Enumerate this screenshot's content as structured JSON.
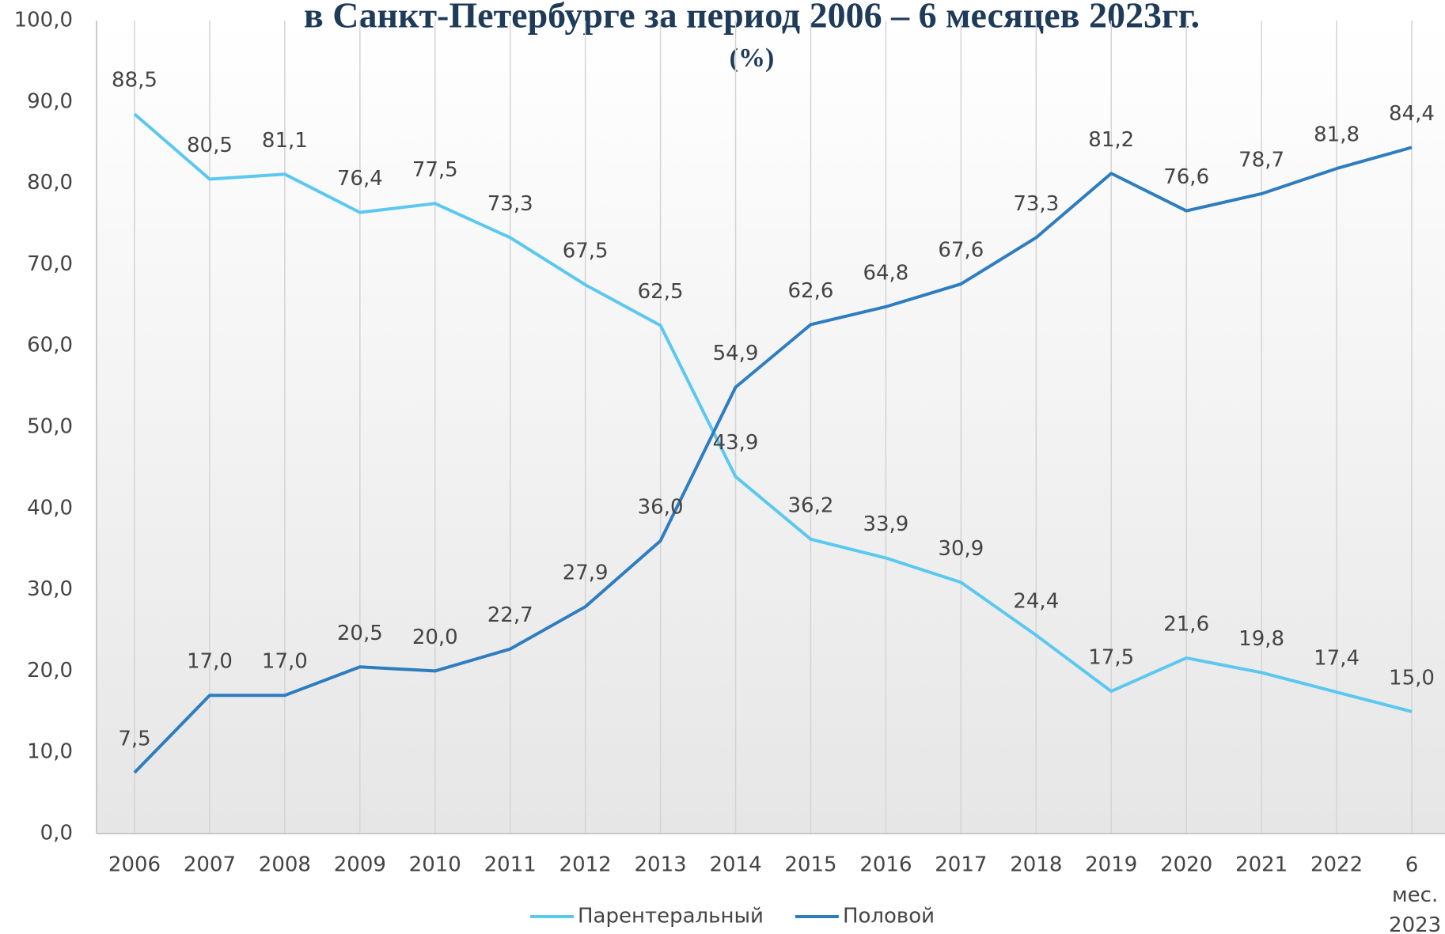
{
  "chart_data": {
    "type": "line",
    "title": "в Санкт-Петербурге за период 2006 – 6 месяцев 2023гг.",
    "subtitle": "(%)",
    "categories": [
      "2006",
      "2007",
      "2008",
      "2009",
      "2010",
      "2011",
      "2012",
      "2013",
      "2014",
      "2015",
      "2016",
      "2017",
      "2018",
      "2019",
      "2020",
      "2021",
      "2022",
      "6 мес. 2023"
    ],
    "series": [
      {
        "name": "Парентеральный",
        "color": "#5bc8ef",
        "values": [
          88.5,
          80.5,
          81.1,
          76.4,
          77.5,
          73.3,
          67.5,
          62.5,
          43.9,
          36.2,
          33.9,
          30.9,
          24.4,
          17.5,
          21.6,
          19.8,
          17.4,
          15.0
        ],
        "value_labels": [
          "88,5",
          "80,5",
          "81,1",
          "76,4",
          "77,5",
          "73,3",
          "67,5",
          "62,5",
          "43,9",
          "36,2",
          "33,9",
          "30,9",
          "24,4",
          "17,5",
          "21,6",
          "19,8",
          "17,4",
          "15,0"
        ]
      },
      {
        "name": "Половой",
        "color": "#2e7dbf",
        "values": [
          7.5,
          17.0,
          17.0,
          20.5,
          20.0,
          22.7,
          27.9,
          36.0,
          54.9,
          62.6,
          64.8,
          67.6,
          73.3,
          81.2,
          76.6,
          78.7,
          81.8,
          84.4
        ],
        "value_labels": [
          "7,5",
          "17,0",
          "17,0",
          "20,5",
          "20,0",
          "22,7",
          "27,9",
          "36,0",
          "54,9",
          "62,6",
          "64,8",
          "67,6",
          "73,3",
          "81,2",
          "76,6",
          "78,7",
          "81,8",
          "84,4"
        ]
      }
    ],
    "ylim": [
      0,
      100
    ],
    "yticks": [
      {
        "value": 0,
        "label": "0,0"
      },
      {
        "value": 10,
        "label": "10,0"
      },
      {
        "value": 20,
        "label": "20,0"
      },
      {
        "value": 30,
        "label": "30,0"
      },
      {
        "value": 40,
        "label": "40,0"
      },
      {
        "value": 50,
        "label": "50,0"
      },
      {
        "value": 60,
        "label": "60,0"
      },
      {
        "value": 70,
        "label": "70,0"
      },
      {
        "value": 80,
        "label": "80,0"
      },
      {
        "value": 90,
        "label": "90,0"
      },
      {
        "value": 100,
        "label": "100,0"
      }
    ],
    "grid": true,
    "legend": "bottom"
  }
}
